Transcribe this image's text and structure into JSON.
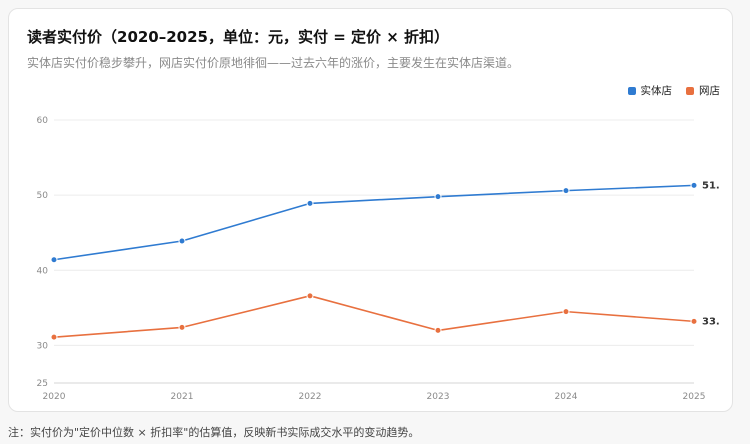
{
  "header": {
    "title": "读者实付价（2020–2025，单位：元，实付 = 定价 × 折扣）",
    "subtitle": "实体店实付价稳步攀升，网店实付价原地徘徊——过去六年的涨价，主要发生在实体店渠道。"
  },
  "footnote": "注：实付价为\"定价中位数 × 折扣率\"的估算值，反映新书实际成交水平的变动趋势。",
  "chart_data": {
    "type": "line",
    "x": [
      "2020",
      "2021",
      "2022",
      "2023",
      "2024",
      "2025"
    ],
    "ylim": [
      25,
      60
    ],
    "yticks": [
      25,
      30,
      40,
      50,
      60
    ],
    "grid": true,
    "legend_position": "top-right",
    "series": [
      {
        "name": "实体店",
        "color": "#2f7bd1",
        "values": [
          41.4,
          43.9,
          48.9,
          49.8,
          50.6,
          51.3
        ],
        "end_label": "51."
      },
      {
        "name": "网店",
        "color": "#e8703f",
        "values": [
          31.1,
          32.4,
          36.6,
          32.0,
          34.5,
          33.2
        ],
        "end_label": "33."
      }
    ]
  }
}
